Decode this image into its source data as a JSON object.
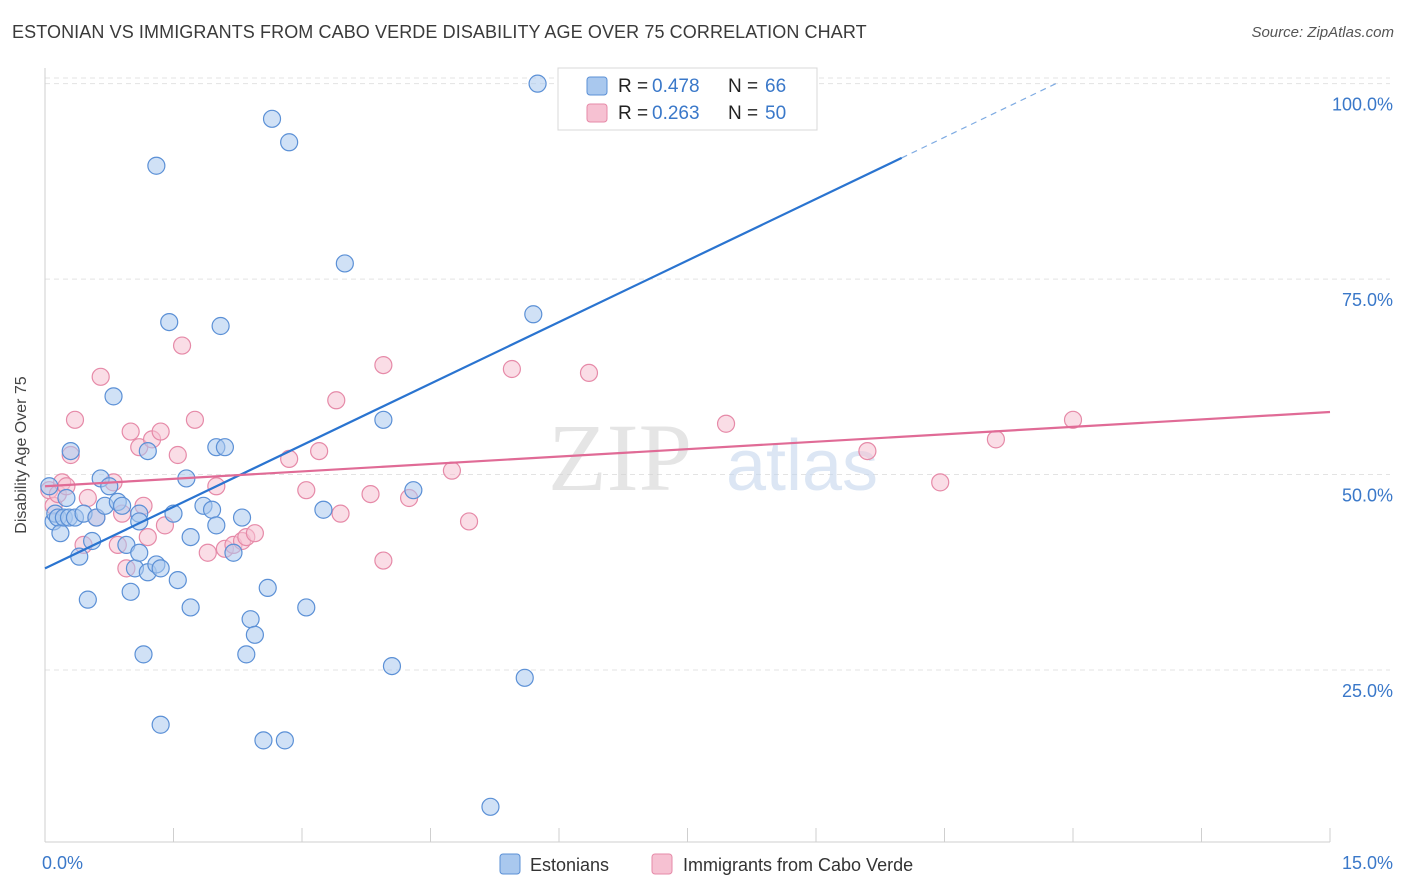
{
  "chart_data": {
    "type": "scatter",
    "title": "ESTONIAN VS IMMIGRANTS FROM CABO VERDE DISABILITY AGE OVER 75 CORRELATION CHART",
    "source": "Source: ZipAtlas.com",
    "xlabel": "",
    "ylabel": "Disability Age Over 75",
    "xlim": [
      0,
      15
    ],
    "ylim": [
      3,
      102
    ],
    "x_tick_labels": {
      "left": "0.0%",
      "right": "15.0%"
    },
    "y_ticks": [
      {
        "value": 25,
        "label": "25.0%"
      },
      {
        "value": 50,
        "label": "50.0%"
      },
      {
        "value": 75,
        "label": "75.0%"
      },
      {
        "value": 100,
        "label": "100.0%"
      }
    ],
    "grid": true,
    "watermark": {
      "part1": "ZIP",
      "part2": "atlas"
    },
    "legend": {
      "position": "top-center",
      "r_label": "R =",
      "n_label": "N =",
      "entries": [
        {
          "r": "0.478",
          "n": "66"
        },
        {
          "r": "0.263",
          "n": "50"
        }
      ]
    },
    "bottom_legend": [
      "Estonians",
      "Immigrants from Cabo Verde"
    ],
    "colors": {
      "blue_fill": "#a9c8ee",
      "blue_stroke": "#5b90d6",
      "blue_line": "#2a74d0",
      "pink_fill": "#f6c1d2",
      "pink_stroke": "#e68aa8",
      "pink_line": "#e06b96",
      "value_text": "#3a78c9",
      "grid": "#e3e3e3",
      "axis": "#cfcfcf"
    },
    "series": [
      {
        "name": "Estonians",
        "trend": {
          "x0": 0.0,
          "y0": 38.0,
          "x1": 10.0,
          "y1": 90.5,
          "dash_x1": 11.8,
          "dash_y1": 100.0
        },
        "points": [
          [
            0.05,
            48.5
          ],
          [
            0.1,
            44.0
          ],
          [
            0.12,
            45.0
          ],
          [
            0.15,
            44.5
          ],
          [
            0.18,
            42.5
          ],
          [
            0.22,
            44.5
          ],
          [
            0.25,
            47.0
          ],
          [
            0.28,
            44.5
          ],
          [
            0.3,
            53.0
          ],
          [
            0.35,
            44.5
          ],
          [
            0.4,
            39.5
          ],
          [
            0.45,
            45.0
          ],
          [
            0.5,
            34.0
          ],
          [
            0.55,
            41.5
          ],
          [
            0.6,
            44.5
          ],
          [
            0.65,
            49.5
          ],
          [
            0.7,
            46.0
          ],
          [
            0.75,
            48.5
          ],
          [
            0.8,
            60.0
          ],
          [
            0.85,
            46.5
          ],
          [
            0.9,
            46.0
          ],
          [
            0.95,
            41.0
          ],
          [
            1.0,
            35.0
          ],
          [
            1.05,
            38.0
          ],
          [
            1.1,
            40.0
          ],
          [
            1.15,
            27.0
          ],
          [
            1.1,
            45.0
          ],
          [
            1.1,
            44.0
          ],
          [
            1.2,
            37.5
          ],
          [
            1.3,
            38.5
          ],
          [
            1.35,
            38.0
          ],
          [
            1.2,
            53.0
          ],
          [
            1.3,
            89.5
          ],
          [
            1.35,
            18.0
          ],
          [
            1.45,
            69.5
          ],
          [
            1.5,
            45.0
          ],
          [
            1.55,
            36.5
          ],
          [
            1.65,
            49.5
          ],
          [
            1.7,
            33.0
          ],
          [
            1.7,
            42.0
          ],
          [
            1.85,
            46.0
          ],
          [
            1.95,
            45.5
          ],
          [
            2.0,
            53.5
          ],
          [
            2.0,
            43.5
          ],
          [
            2.05,
            69.0
          ],
          [
            2.1,
            53.5
          ],
          [
            2.2,
            40.0
          ],
          [
            2.3,
            44.5
          ],
          [
            2.35,
            27.0
          ],
          [
            2.4,
            31.5
          ],
          [
            2.45,
            29.5
          ],
          [
            2.6,
            35.5
          ],
          [
            2.55,
            16.0
          ],
          [
            2.65,
            95.5
          ],
          [
            2.8,
            16.0
          ],
          [
            2.85,
            92.5
          ],
          [
            3.05,
            33.0
          ],
          [
            3.25,
            45.5
          ],
          [
            3.5,
            77.0
          ],
          [
            3.95,
            57.0
          ],
          [
            4.05,
            25.5
          ],
          [
            4.3,
            48.0
          ],
          [
            5.2,
            7.5
          ],
          [
            5.6,
            24.0
          ],
          [
            5.7,
            70.5
          ],
          [
            5.75,
            100.0
          ]
        ]
      },
      {
        "name": "Immigrants from Cabo Verde",
        "trend": {
          "x0": 0.0,
          "y0": 48.5,
          "x1": 15.0,
          "y1": 58.0
        },
        "points": [
          [
            0.05,
            48.0
          ],
          [
            0.1,
            46.0
          ],
          [
            0.15,
            47.5
          ],
          [
            0.2,
            49.0
          ],
          [
            0.25,
            48.5
          ],
          [
            0.3,
            52.5
          ],
          [
            0.35,
            57.0
          ],
          [
            0.45,
            41.0
          ],
          [
            0.5,
            47.0
          ],
          [
            0.6,
            44.5
          ],
          [
            0.65,
            62.5
          ],
          [
            0.8,
            49.0
          ],
          [
            0.85,
            41.0
          ],
          [
            0.9,
            45.0
          ],
          [
            0.95,
            38.0
          ],
          [
            1.0,
            55.5
          ],
          [
            1.1,
            53.5
          ],
          [
            1.15,
            46.0
          ],
          [
            1.2,
            42.0
          ],
          [
            1.25,
            54.5
          ],
          [
            1.35,
            55.5
          ],
          [
            1.4,
            43.5
          ],
          [
            1.55,
            52.5
          ],
          [
            1.6,
            66.5
          ],
          [
            1.75,
            57.0
          ],
          [
            1.9,
            40.0
          ],
          [
            2.0,
            48.5
          ],
          [
            2.1,
            40.5
          ],
          [
            2.2,
            41.0
          ],
          [
            2.3,
            41.5
          ],
          [
            2.35,
            42.0
          ],
          [
            2.45,
            42.5
          ],
          [
            2.85,
            52.0
          ],
          [
            3.05,
            48.0
          ],
          [
            3.2,
            53.0
          ],
          [
            3.4,
            59.5
          ],
          [
            3.45,
            45.0
          ],
          [
            3.8,
            47.5
          ],
          [
            3.95,
            64.0
          ],
          [
            3.95,
            39.0
          ],
          [
            4.25,
            47.0
          ],
          [
            4.75,
            50.5
          ],
          [
            4.95,
            44.0
          ],
          [
            5.45,
            63.5
          ],
          [
            6.35,
            63.0
          ],
          [
            7.95,
            56.5
          ],
          [
            9.6,
            53.0
          ],
          [
            10.45,
            49.0
          ],
          [
            11.1,
            54.5
          ],
          [
            12.0,
            57.0
          ]
        ]
      }
    ]
  }
}
